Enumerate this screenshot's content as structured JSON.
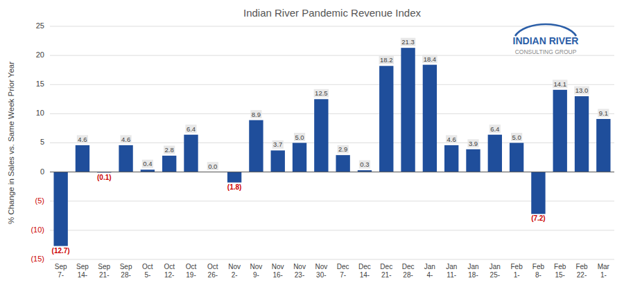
{
  "chart_data": {
    "type": "bar",
    "title": "Indian River Pandemic Revenue Index",
    "y_label": "% Change in Sales vs. Same Week Prior Year",
    "categories": [
      "Sep\n7-",
      "Sep\n14-",
      "Sep\n21-",
      "Sep\n28-",
      "Oct\n5-",
      "Oct\n12-",
      "Oct\n19-",
      "Oct\n26-",
      "Nov\n2-",
      "Nov\n9-",
      "Nov\n16-",
      "Nov\n23-",
      "Nov\n30-",
      "Dec\n7-",
      "Dec\n14-",
      "Dec\n21-",
      "Dec\n28-",
      "Jan\n4-",
      "Jan\n11-",
      "Jan\n18-",
      "Jan\n25-",
      "Feb\n1-",
      "Feb\n8-",
      "Feb\n15-",
      "Feb\n22-",
      "Mar\n1-"
    ],
    "values": [
      -12.7,
      4.6,
      -0.1,
      4.6,
      0.4,
      2.8,
      6.4,
      0.0,
      -1.8,
      8.9,
      3.7,
      5.0,
      12.5,
      2.9,
      0.3,
      18.2,
      21.3,
      18.4,
      4.6,
      3.9,
      6.4,
      5.0,
      -7.2,
      14.1,
      13.0,
      9.1
    ],
    "value_labels": [
      "(12.7)",
      "4.6",
      "(0.1)",
      "4.6",
      "0.4",
      "2.8",
      "6.4",
      "0.0",
      "(1.8)",
      "8.9",
      "3.7",
      "5.0",
      "12.5",
      "2.9",
      "0.3",
      "18.2",
      "21.3",
      "18.4",
      "4.6",
      "3.9",
      "6.4",
      "5.0",
      "(7.2)",
      "14.1",
      "13.0",
      "9.1"
    ],
    "data_labels": true,
    "color": "#1F4E9B",
    "ylim": [
      -15,
      25
    ],
    "yticks": [
      {
        "value": -15,
        "label": "(15)"
      },
      {
        "value": -10,
        "label": "(10)"
      },
      {
        "value": -5,
        "label": "(5)"
      },
      0,
      5,
      10,
      15,
      20,
      25
    ],
    "grid": true,
    "annotations": [
      "INDIAN RIVER",
      "CONSULTING GROUP"
    ]
  }
}
